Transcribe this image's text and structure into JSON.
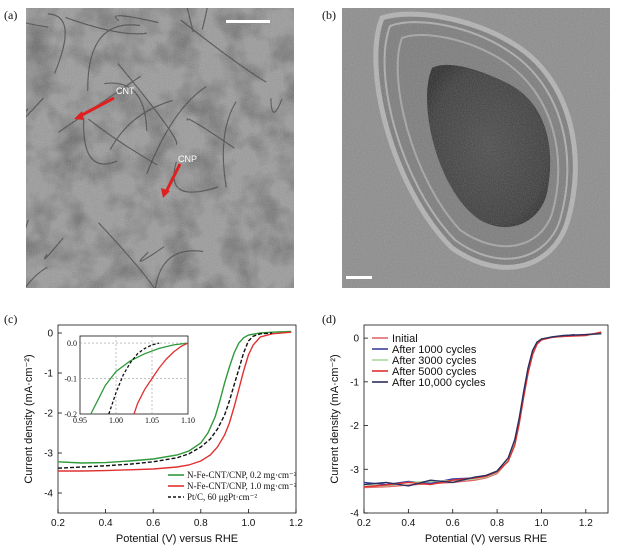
{
  "panels": {
    "a": {
      "label": "(a)",
      "annotations": [
        {
          "text": "CNT"
        },
        {
          "text": "CNP"
        }
      ]
    },
    "b": {
      "label": "(b)"
    },
    "c": {
      "label": "(c)"
    },
    "d": {
      "label": "(d)"
    }
  },
  "colors": {
    "green": "#2e9a3a",
    "red": "#e03131",
    "black": "#111111",
    "blue": "#3a3fa0",
    "pink": "#e06a6a",
    "lightgreen": "#a8d8a0",
    "navy": "#2a2f60",
    "arrow": "#e02020"
  },
  "chart_data": [
    {
      "id": "c",
      "type": "line",
      "xlabel": "Potential (V) versus RHE",
      "ylabel": "Current density (mA·cm⁻²)",
      "xlim": [
        0.2,
        1.2
      ],
      "ylim": [
        -4.5,
        0.2
      ],
      "xticks": [
        "0.2",
        "0.4",
        "0.6",
        "0.8",
        "1.0",
        "1.2"
      ],
      "yticks": [
        "0",
        "-1",
        "-2",
        "-3",
        "-4"
      ],
      "legend_position": "bottom-right",
      "series": [
        {
          "name": "N-Fe-CNT/CNP, 0.2 mg·cm⁻²",
          "color": "green",
          "dash": false,
          "x": [
            0.2,
            0.3,
            0.4,
            0.5,
            0.6,
            0.7,
            0.75,
            0.8,
            0.83,
            0.86,
            0.88,
            0.9,
            0.92,
            0.94,
            0.96,
            0.98,
            1.0,
            1.05,
            1.1,
            1.18
          ],
          "y": [
            -3.22,
            -3.25,
            -3.24,
            -3.2,
            -3.15,
            -3.05,
            -2.95,
            -2.75,
            -2.5,
            -2.1,
            -1.7,
            -1.25,
            -0.85,
            -0.5,
            -0.25,
            -0.12,
            -0.05,
            0.0,
            0.02,
            0.04
          ]
        },
        {
          "name": "N-Fe-CNT/CNP, 1.0 mg·cm⁻²",
          "color": "red",
          "dash": false,
          "x": [
            0.2,
            0.3,
            0.4,
            0.5,
            0.6,
            0.7,
            0.75,
            0.8,
            0.84,
            0.87,
            0.9,
            0.92,
            0.94,
            0.96,
            0.98,
            1.0,
            1.02,
            1.05,
            1.1,
            1.18
          ],
          "y": [
            -3.45,
            -3.45,
            -3.44,
            -3.42,
            -3.4,
            -3.35,
            -3.3,
            -3.2,
            -3.05,
            -2.85,
            -2.55,
            -2.25,
            -1.85,
            -1.4,
            -0.95,
            -0.55,
            -0.3,
            -0.1,
            -0.02,
            0.02
          ]
        },
        {
          "name": "Pt/C, 60 μgPt·cm⁻²",
          "color": "black",
          "dash": true,
          "x": [
            0.2,
            0.3,
            0.4,
            0.5,
            0.6,
            0.7,
            0.75,
            0.8,
            0.84,
            0.87,
            0.9,
            0.92,
            0.94,
            0.96,
            0.98,
            1.0,
            1.02,
            1.05,
            1.1
          ],
          "y": [
            -3.38,
            -3.35,
            -3.32,
            -3.28,
            -3.22,
            -3.12,
            -3.02,
            -2.85,
            -2.65,
            -2.4,
            -2.05,
            -1.7,
            -1.3,
            -0.9,
            -0.5,
            -0.2,
            -0.08,
            -0.02,
            0.0
          ]
        }
      ],
      "inset": {
        "xlim": [
          0.95,
          1.1
        ],
        "ylim": [
          -0.2,
          0.02
        ],
        "xticks": [
          "0.95",
          "1.00",
          "1.05",
          "1.10"
        ],
        "yticks": [
          "0.0",
          "-0.1",
          "-0.2"
        ],
        "series": [
          {
            "color": "green",
            "dash": false,
            "x": [
              0.965,
              0.975,
              0.985,
              1.0,
              1.02,
              1.04,
              1.06,
              1.08,
              1.1
            ],
            "y": [
              -0.2,
              -0.16,
              -0.12,
              -0.08,
              -0.05,
              -0.03,
              -0.015,
              -0.005,
              0.0
            ]
          },
          {
            "color": "red",
            "dash": false,
            "x": [
              1.025,
              1.03,
              1.04,
              1.05,
              1.06,
              1.07,
              1.08,
              1.09,
              1.1
            ],
            "y": [
              -0.2,
              -0.17,
              -0.13,
              -0.1,
              -0.07,
              -0.045,
              -0.025,
              -0.01,
              0.0
            ]
          },
          {
            "color": "black",
            "dash": true,
            "x": [
              0.99,
              1.0,
              1.01,
              1.02,
              1.03,
              1.04,
              1.05,
              1.06
            ],
            "y": [
              -0.2,
              -0.14,
              -0.09,
              -0.055,
              -0.03,
              -0.015,
              -0.005,
              0.0
            ]
          }
        ]
      }
    },
    {
      "id": "d",
      "type": "line",
      "xlabel": "Potential (V) versus RHE",
      "ylabel": "Current density (mA·cm⁻²)",
      "xlim": [
        0.2,
        1.3
      ],
      "ylim": [
        -4.0,
        0.3
      ],
      "xticks": [
        "0.2",
        "0.4",
        "0.6",
        "0.8",
        "1.0",
        "1.2"
      ],
      "yticks": [
        "0",
        "-1",
        "-2",
        "-3",
        "-4"
      ],
      "legend_position": "top-left",
      "series": [
        {
          "name": "Initial",
          "color": "pink",
          "dash": false,
          "x": [
            0.2,
            0.3,
            0.4,
            0.5,
            0.6,
            0.7,
            0.75,
            0.8,
            0.85,
            0.88,
            0.9,
            0.92,
            0.94,
            0.96,
            0.98,
            1.0,
            1.05,
            1.1,
            1.15,
            1.2,
            1.27
          ],
          "y": [
            -3.42,
            -3.4,
            -3.36,
            -3.33,
            -3.3,
            -3.25,
            -3.2,
            -3.1,
            -2.8,
            -2.4,
            -1.9,
            -1.3,
            -0.75,
            -0.35,
            -0.12,
            -0.03,
            0.02,
            0.04,
            0.06,
            0.08,
            0.12
          ]
        },
        {
          "name": "After 1000 cycles",
          "color": "blue",
          "dash": false,
          "x": [
            0.2,
            0.3,
            0.4,
            0.5,
            0.6,
            0.7,
            0.75,
            0.8,
            0.85,
            0.88,
            0.9,
            0.92,
            0.94,
            0.96,
            0.98,
            1.0,
            1.05,
            1.1,
            1.15
          ],
          "y": [
            -3.3,
            -3.35,
            -3.28,
            -3.32,
            -3.22,
            -3.2,
            -3.15,
            -3.05,
            -2.75,
            -2.35,
            -1.85,
            -1.25,
            -0.7,
            -0.3,
            -0.1,
            -0.02,
            0.02,
            0.05,
            0.08
          ]
        },
        {
          "name": "After 3000 cycles",
          "color": "lightgreen",
          "dash": false,
          "x": [
            0.2,
            0.3,
            0.4,
            0.5,
            0.6,
            0.7,
            0.75,
            0.8,
            0.85,
            0.88,
            0.9,
            0.92,
            0.94,
            0.96,
            0.98,
            1.0,
            1.05,
            1.1,
            1.2,
            1.27
          ],
          "y": [
            -3.35,
            -3.38,
            -3.3,
            -3.28,
            -3.26,
            -3.22,
            -3.18,
            -3.08,
            -2.78,
            -2.38,
            -1.88,
            -1.28,
            -0.72,
            -0.32,
            -0.1,
            -0.02,
            0.03,
            0.05,
            0.07,
            0.1
          ]
        },
        {
          "name": "After 5000 cycles",
          "color": "red",
          "dash": false,
          "x": [
            0.2,
            0.3,
            0.4,
            0.5,
            0.6,
            0.7,
            0.75,
            0.8,
            0.85,
            0.88,
            0.9,
            0.92,
            0.94,
            0.96,
            0.98,
            1.0,
            1.05,
            1.1,
            1.2,
            1.27
          ],
          "y": [
            -3.4,
            -3.36,
            -3.3,
            -3.35,
            -3.25,
            -3.2,
            -3.16,
            -3.06,
            -2.82,
            -2.45,
            -1.95,
            -1.35,
            -0.8,
            -0.38,
            -0.14,
            -0.04,
            0.02,
            0.04,
            0.06,
            0.14
          ]
        },
        {
          "name": "After 10,000 cycles",
          "color": "navy",
          "dash": false,
          "x": [
            0.2,
            0.3,
            0.4,
            0.5,
            0.6,
            0.7,
            0.75,
            0.8,
            0.85,
            0.88,
            0.9,
            0.92,
            0.94,
            0.96,
            0.98,
            1.0,
            1.05,
            1.1,
            1.2,
            1.27
          ],
          "y": [
            -3.35,
            -3.3,
            -3.38,
            -3.25,
            -3.3,
            -3.18,
            -3.14,
            -3.04,
            -2.74,
            -2.32,
            -1.82,
            -1.22,
            -0.68,
            -0.28,
            -0.09,
            -0.02,
            0.03,
            0.06,
            0.08,
            0.1
          ]
        }
      ]
    }
  ]
}
